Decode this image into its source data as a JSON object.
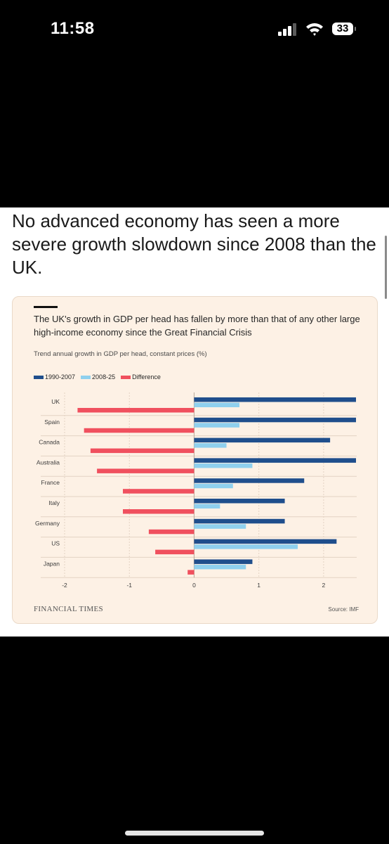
{
  "status_bar": {
    "time": "11:58",
    "battery": "33"
  },
  "post": {
    "headline": "No advanced economy has seen a more severe growth slowdown since 2008 than the UK."
  },
  "chart_data": {
    "type": "bar",
    "orientation": "horizontal",
    "title": "The UK's growth in GDP per head has fallen by more than that of any other large high-income economy since the Great Financial Crisis",
    "subtitle": "Trend annual growth in GDP per head, constant prices (%)",
    "categories": [
      "UK",
      "Spain",
      "Canada",
      "Australia",
      "France",
      "Italy",
      "Germany",
      "US",
      "Japan"
    ],
    "series": [
      {
        "name": "1990-2007",
        "color": "#1f4e8c",
        "values": [
          2.5,
          2.5,
          2.1,
          2.5,
          1.7,
          1.4,
          1.4,
          2.2,
          0.9
        ]
      },
      {
        "name": "2008-25",
        "color": "#8fd0ee",
        "values": [
          0.7,
          0.7,
          0.5,
          0.9,
          0.6,
          0.4,
          0.8,
          1.6,
          0.8
        ]
      },
      {
        "name": "Difference",
        "color": "#f0505e",
        "values": [
          -1.8,
          -1.7,
          -1.6,
          -1.5,
          -1.1,
          -1.1,
          -0.7,
          -0.6,
          -0.1
        ]
      }
    ],
    "xlim": [
      -2,
      2.5
    ],
    "xticks": [
      "-2",
      "-1",
      "0",
      "1",
      "2"
    ],
    "grid": true,
    "legend": "top-left",
    "branding": "FINANCIAL TIMES",
    "source": "Source: IMF"
  }
}
